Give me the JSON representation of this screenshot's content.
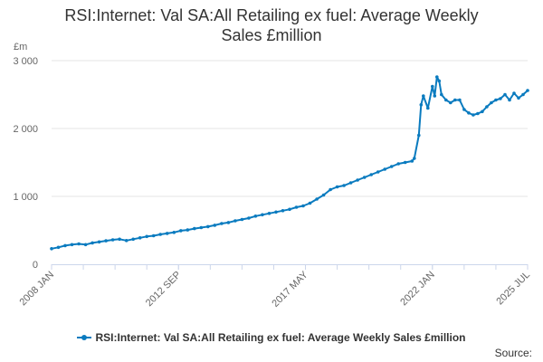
{
  "chart_data": {
    "type": "line",
    "title": "RSI:Internet: Val SA:All Retailing ex fuel: Average Weekly Sales £million",
    "title_lines": [
      "RSI:Internet: Val SA:All Retailing ex fuel: Average Weekly",
      "Sales £million"
    ],
    "unit_label": "£m",
    "y_ticks": [
      {
        "value": 0,
        "label": "0"
      },
      {
        "value": 1000,
        "label": "1 000"
      },
      {
        "value": 2000,
        "label": "2 000"
      },
      {
        "value": 3000,
        "label": "3 000"
      }
    ],
    "ylim": [
      0,
      3000
    ],
    "x_range": [
      "2008-01",
      "2025-07"
    ],
    "x_ticks": [
      {
        "date": "2008-01",
        "label": "2008 JAN"
      },
      {
        "date": "2012-09",
        "label": "2012 SEP"
      },
      {
        "date": "2017-05",
        "label": "2017 MAY"
      },
      {
        "date": "2022-01",
        "label": "2022 JAN"
      },
      {
        "date": "2025-07",
        "label": "2025 JUL"
      }
    ],
    "grid": "horizontal",
    "legend_position": "bottom",
    "series": [
      {
        "name": "RSI:Internet: Val SA:All Retailing ex fuel: Average Weekly Sales £million",
        "color": "#0a7bbf",
        "points": [
          [
            "2008-01",
            230
          ],
          [
            "2008-04",
            250
          ],
          [
            "2008-07",
            275
          ],
          [
            "2008-10",
            290
          ],
          [
            "2009-01",
            300
          ],
          [
            "2009-04",
            290
          ],
          [
            "2009-07",
            315
          ],
          [
            "2009-10",
            330
          ],
          [
            "2010-01",
            345
          ],
          [
            "2010-04",
            360
          ],
          [
            "2010-07",
            370
          ],
          [
            "2010-10",
            350
          ],
          [
            "2011-01",
            370
          ],
          [
            "2011-04",
            390
          ],
          [
            "2011-07",
            410
          ],
          [
            "2011-10",
            420
          ],
          [
            "2012-01",
            440
          ],
          [
            "2012-04",
            455
          ],
          [
            "2012-07",
            470
          ],
          [
            "2012-10",
            495
          ],
          [
            "2013-01",
            505
          ],
          [
            "2013-04",
            525
          ],
          [
            "2013-07",
            540
          ],
          [
            "2013-10",
            555
          ],
          [
            "2014-01",
            575
          ],
          [
            "2014-04",
            600
          ],
          [
            "2014-07",
            615
          ],
          [
            "2014-10",
            640
          ],
          [
            "2015-01",
            660
          ],
          [
            "2015-04",
            680
          ],
          [
            "2015-07",
            710
          ],
          [
            "2015-10",
            730
          ],
          [
            "2016-01",
            750
          ],
          [
            "2016-04",
            770
          ],
          [
            "2016-07",
            790
          ],
          [
            "2016-10",
            810
          ],
          [
            "2017-01",
            840
          ],
          [
            "2017-04",
            860
          ],
          [
            "2017-07",
            900
          ],
          [
            "2017-10",
            960
          ],
          [
            "2018-01",
            1020
          ],
          [
            "2018-04",
            1100
          ],
          [
            "2018-07",
            1140
          ],
          [
            "2018-10",
            1160
          ],
          [
            "2019-01",
            1200
          ],
          [
            "2019-04",
            1240
          ],
          [
            "2019-07",
            1280
          ],
          [
            "2019-10",
            1320
          ],
          [
            "2020-01",
            1360
          ],
          [
            "2020-04",
            1400
          ],
          [
            "2020-07",
            1440
          ],
          [
            "2020-10",
            1480
          ],
          [
            "2021-01",
            1500
          ],
          [
            "2021-04",
            1520
          ],
          [
            "2021-05",
            1560
          ],
          [
            "2021-07",
            1900
          ],
          [
            "2021-08",
            2350
          ],
          [
            "2021-09",
            2480
          ],
          [
            "2021-11",
            2300
          ],
          [
            "2022-01",
            2620
          ],
          [
            "2022-02",
            2480
          ],
          [
            "2022-03",
            2760
          ],
          [
            "2022-04",
            2700
          ],
          [
            "2022-05",
            2500
          ],
          [
            "2022-07",
            2420
          ],
          [
            "2022-09",
            2380
          ],
          [
            "2022-11",
            2420
          ],
          [
            "2023-01",
            2420
          ],
          [
            "2023-03",
            2280
          ],
          [
            "2023-05",
            2230
          ],
          [
            "2023-07",
            2200
          ],
          [
            "2023-09",
            2220
          ],
          [
            "2023-11",
            2250
          ],
          [
            "2024-01",
            2320
          ],
          [
            "2024-03",
            2380
          ],
          [
            "2024-05",
            2420
          ],
          [
            "2024-07",
            2440
          ],
          [
            "2024-09",
            2500
          ],
          [
            "2024-11",
            2420
          ],
          [
            "2025-01",
            2520
          ],
          [
            "2025-03",
            2450
          ],
          [
            "2025-05",
            2500
          ],
          [
            "2025-07",
            2560
          ]
        ]
      }
    ]
  },
  "legend_label": "RSI:Internet: Val SA:All Retailing ex fuel: Average Weekly Sales £million",
  "source_label": "Source:"
}
